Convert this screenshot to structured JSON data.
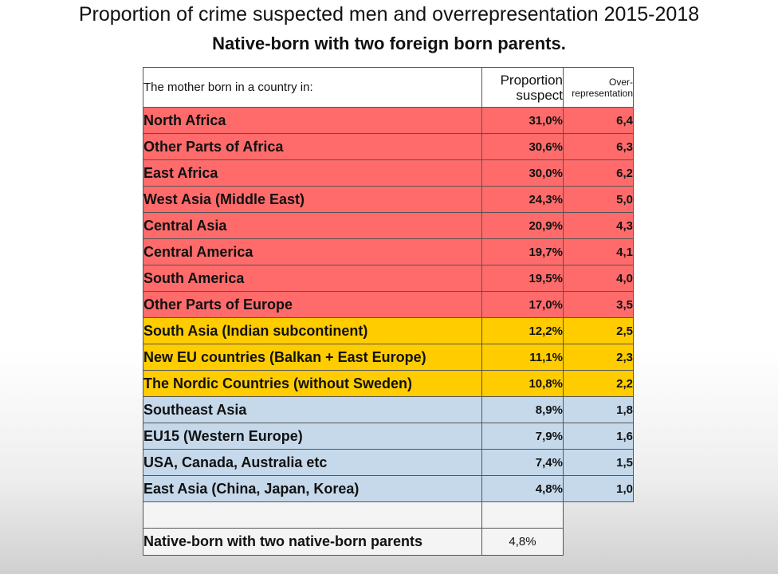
{
  "chart_data": {
    "type": "table",
    "title": "Proportion of crime suspected men and overrepresentation 2015-2018",
    "subtitle": "Native-born with two foreign born parents.",
    "columns": {
      "country": "The mother born in a country in:",
      "proportion_line1": "Proportion",
      "proportion_line2": "suspect",
      "over_line1": "Over-",
      "over_line2": "representation"
    },
    "rows": [
      {
        "name": "North Africa",
        "proportion": "31,0%",
        "over": "6,4",
        "group": "red"
      },
      {
        "name": "Other Parts of Africa",
        "proportion": "30,6%",
        "over": "6,3",
        "group": "red"
      },
      {
        "name": "East Africa",
        "proportion": "30,0%",
        "over": "6,2",
        "group": "red"
      },
      {
        "name": "West Asia (Middle East)",
        "proportion": "24,3%",
        "over": "5,0",
        "group": "red"
      },
      {
        "name": "Central Asia",
        "proportion": "20,9%",
        "over": "4,3",
        "group": "red"
      },
      {
        "name": "Central America",
        "proportion": "19,7%",
        "over": "4,1",
        "group": "red"
      },
      {
        "name": "South America",
        "proportion": "19,5%",
        "over": "4,0",
        "group": "red"
      },
      {
        "name": "Other Parts of Europe",
        "proportion": "17,0%",
        "over": "3,5",
        "group": "red"
      },
      {
        "name": "South Asia (Indian subcontinent)",
        "proportion": "12,2%",
        "over": "2,5",
        "group": "yellow"
      },
      {
        "name": "New EU countries (Balkan + East Europe)",
        "proportion": "11,1%",
        "over": "2,3",
        "group": "yellow"
      },
      {
        "name": "The Nordic Countries (without Sweden)",
        "proportion": "10,8%",
        "over": "2,2",
        "group": "yellow"
      },
      {
        "name": "Southeast Asia",
        "proportion": "8,9%",
        "over": "1,8",
        "group": "blue"
      },
      {
        "name": "EU15 (Western Europe)",
        "proportion": "7,9%",
        "over": "1,6",
        "group": "blue"
      },
      {
        "name": "USA, Canada, Australia etc",
        "proportion": "7,4%",
        "over": "1,5",
        "group": "blue"
      },
      {
        "name": "East Asia (China, Japan, Korea)",
        "proportion": "4,8%",
        "over": "1,0",
        "group": "blue"
      }
    ],
    "baseline": {
      "name": "Native-born with two native-born parents",
      "proportion": "4,8%"
    },
    "colors": {
      "red": "#ff6b6b",
      "yellow": "#ffcc00",
      "blue": "#c5d9eb"
    }
  }
}
